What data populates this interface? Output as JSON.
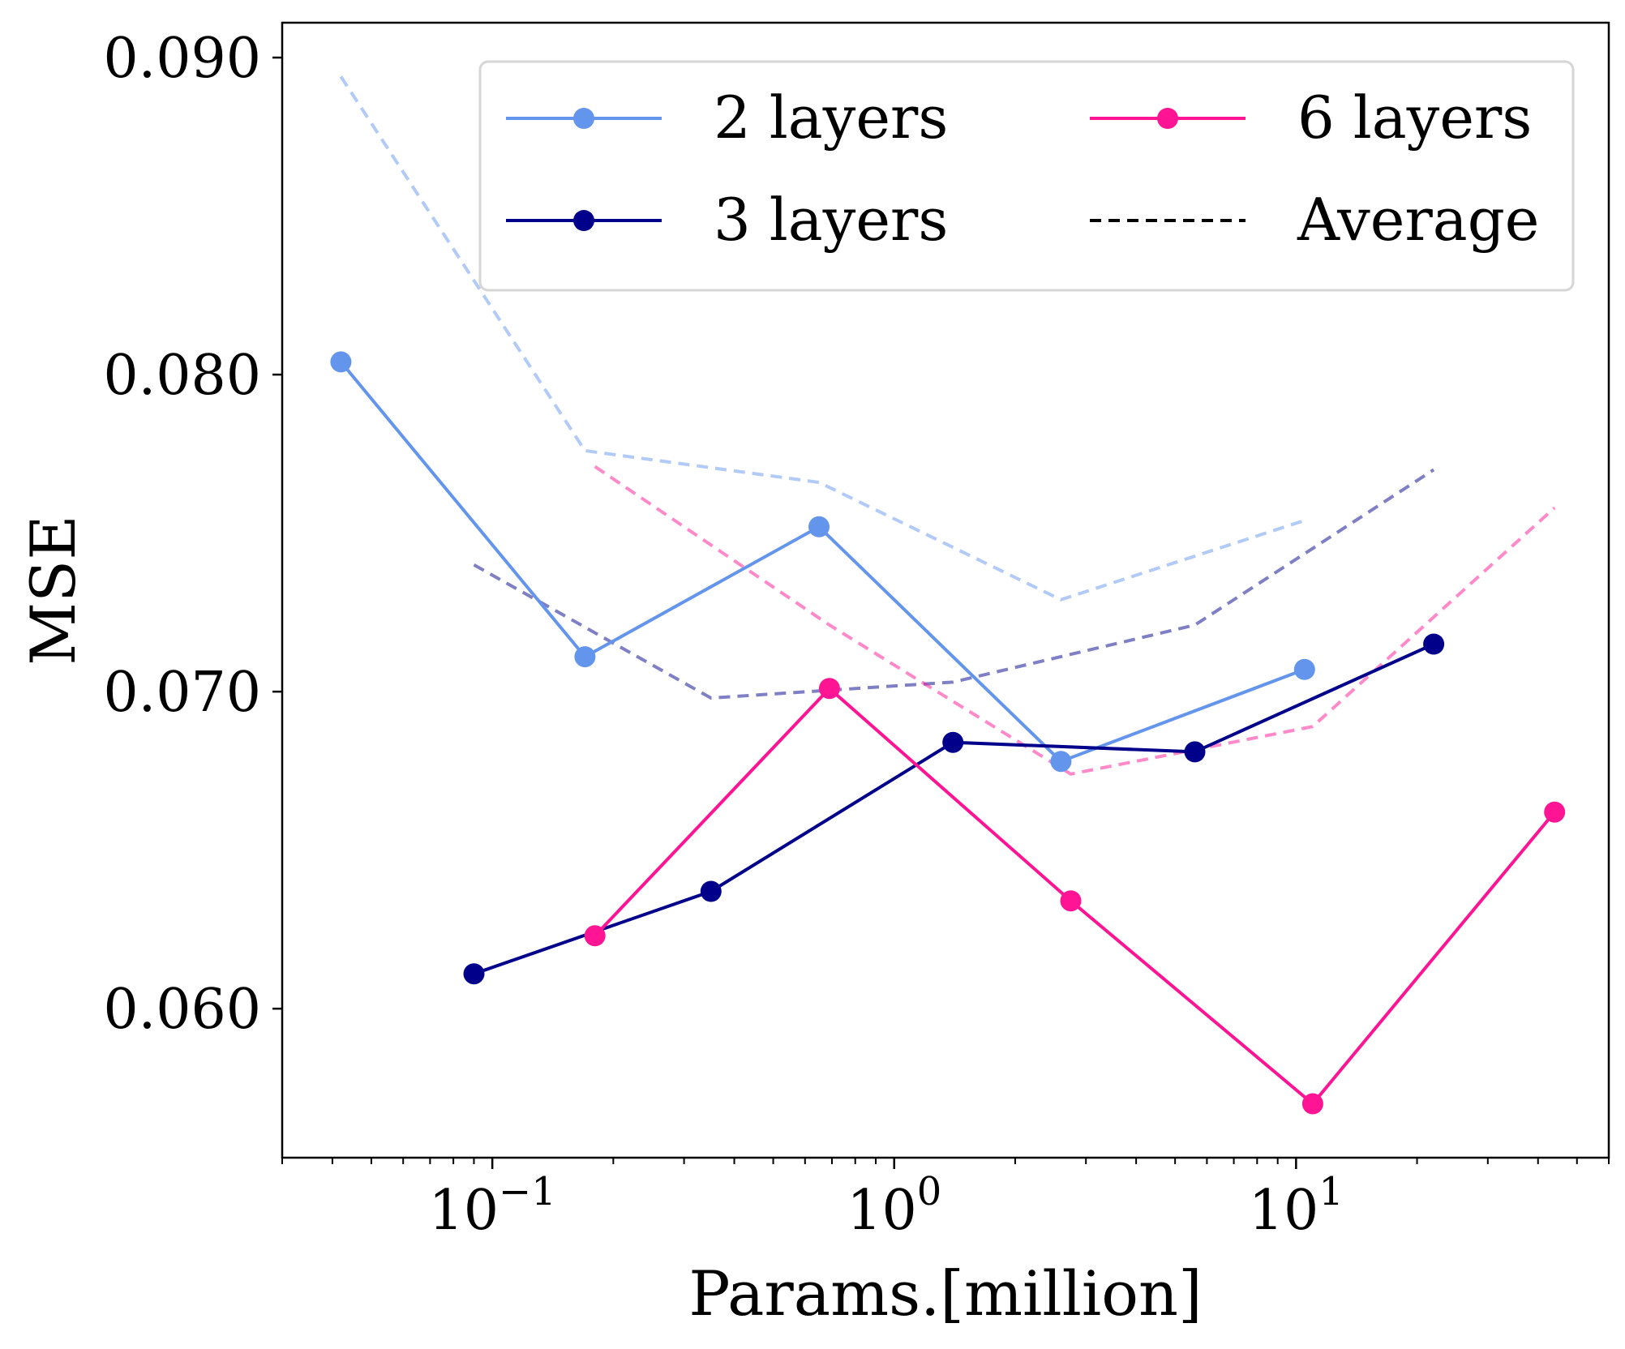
{
  "chart_data": {
    "type": "line",
    "xscale": "log",
    "xlabel": "Params.[million]",
    "ylabel": "MSE",
    "xlim": [
      0.03,
      60
    ],
    "ylim": [
      0.0553,
      0.0911
    ],
    "yticks": [
      0.06,
      0.07,
      0.08,
      0.09
    ],
    "ytick_labels": [
      "0.060",
      "0.070",
      "0.080",
      "0.090"
    ],
    "xticks": [
      0.1,
      1,
      10
    ],
    "xtick_labels": [
      {
        "base": "10",
        "exp": "−1"
      },
      {
        "base": "10",
        "exp": "0"
      },
      {
        "base": "10",
        "exp": "1"
      }
    ],
    "grid": false,
    "legend_position": "top-right",
    "series": [
      {
        "name": "2 layers",
        "color": "#6495ED",
        "x": [
          0.042,
          0.17,
          0.65,
          2.6,
          10.5
        ],
        "y": [
          0.0804,
          0.0711,
          0.0752,
          0.0678,
          0.0707
        ],
        "average": [
          0.0894,
          0.0776,
          0.0766,
          0.0729,
          0.0754
        ]
      },
      {
        "name": "3 layers",
        "color": "#00008B",
        "x": [
          0.09,
          0.35,
          1.4,
          5.6,
          22
        ],
        "y": [
          0.0611,
          0.0637,
          0.0684,
          0.0681,
          0.0715
        ],
        "average": [
          0.074,
          0.0698,
          0.0703,
          0.0721,
          0.077
        ]
      },
      {
        "name": "6 layers",
        "color": "#FF1493",
        "x": [
          0.18,
          0.69,
          2.75,
          11,
          44
        ],
        "y": [
          0.0623,
          0.0701,
          0.0634,
          0.057,
          0.0662
        ],
        "average": [
          0.0771,
          0.0721,
          0.0674,
          0.0689,
          0.0758
        ]
      }
    ],
    "legend": {
      "items": [
        {
          "label": "2 layers",
          "color": "#6495ED",
          "style": "line-marker"
        },
        {
          "label": "6 layers",
          "color": "#FF1493",
          "style": "line-marker"
        },
        {
          "label": "3 layers",
          "color": "#00008B",
          "style": "line-marker"
        },
        {
          "label": "Average",
          "color": "#000000",
          "style": "dashed"
        }
      ]
    }
  }
}
